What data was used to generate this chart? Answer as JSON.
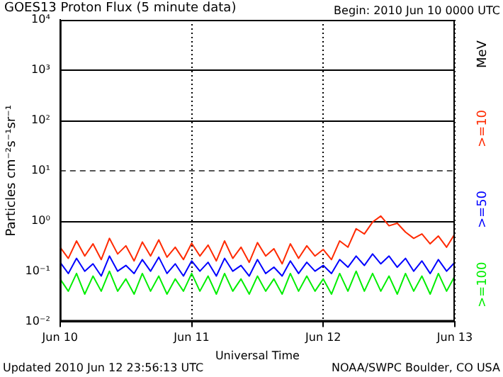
{
  "chart_data": {
    "type": "line",
    "title": "GOES13 Proton Flux (5 minute data)",
    "xlabel": "Universal Time",
    "ylabel": "Particles cm⁻²s⁻¹sr⁻¹",
    "legend_title": "MeV",
    "annotations": [
      "Begin: 2010 Jun 10 0000 UTC",
      "Updated 2010 Jun 12 23:56:13 UTC",
      "NOAA/SWPC Boulder, CO USA"
    ],
    "x": [
      "2010-06-10T00:00",
      "2010-06-10T01:30",
      "2010-06-10T03:00",
      "2010-06-10T04:30",
      "2010-06-10T06:00",
      "2010-06-10T07:30",
      "2010-06-10T09:00",
      "2010-06-10T10:30",
      "2010-06-10T12:00",
      "2010-06-10T13:30",
      "2010-06-10T15:00",
      "2010-06-10T16:30",
      "2010-06-10T18:00",
      "2010-06-10T19:30",
      "2010-06-10T21:00",
      "2010-06-10T22:30",
      "2010-06-11T00:00",
      "2010-06-11T01:30",
      "2010-06-11T03:00",
      "2010-06-11T04:30",
      "2010-06-11T06:00",
      "2010-06-11T07:30",
      "2010-06-11T09:00",
      "2010-06-11T10:30",
      "2010-06-11T12:00",
      "2010-06-11T13:30",
      "2010-06-11T15:00",
      "2010-06-11T16:30",
      "2010-06-11T18:00",
      "2010-06-11T19:30",
      "2010-06-11T21:00",
      "2010-06-11T22:30",
      "2010-06-12T00:00",
      "2010-06-12T01:30",
      "2010-06-12T03:00",
      "2010-06-12T04:30",
      "2010-06-12T06:00",
      "2010-06-12T07:30",
      "2010-06-12T09:00",
      "2010-06-12T10:30",
      "2010-06-12T12:00",
      "2010-06-12T13:30",
      "2010-06-12T15:00",
      "2010-06-12T16:30",
      "2010-06-12T18:00",
      "2010-06-12T19:30",
      "2010-06-12T21:00",
      "2010-06-12T22:30",
      "2010-06-13T00:00"
    ],
    "series": [
      {
        "name": ">=10",
        "color": "#ff2a00",
        "values": [
          0.3,
          0.18,
          0.4,
          0.2,
          0.35,
          0.17,
          0.45,
          0.22,
          0.32,
          0.16,
          0.38,
          0.2,
          0.42,
          0.19,
          0.3,
          0.17,
          0.36,
          0.2,
          0.33,
          0.16,
          0.4,
          0.18,
          0.3,
          0.15,
          0.37,
          0.2,
          0.28,
          0.14,
          0.35,
          0.18,
          0.32,
          0.2,
          0.27,
          0.17,
          0.4,
          0.3,
          0.7,
          0.55,
          0.95,
          1.25,
          0.8,
          0.9,
          0.6,
          0.45,
          0.55,
          0.35,
          0.5,
          0.3,
          0.55
        ]
      },
      {
        "name": ">=50",
        "color": "#0000ff",
        "values": [
          0.15,
          0.09,
          0.18,
          0.1,
          0.14,
          0.08,
          0.2,
          0.1,
          0.13,
          0.09,
          0.17,
          0.1,
          0.19,
          0.09,
          0.14,
          0.08,
          0.16,
          0.1,
          0.15,
          0.08,
          0.18,
          0.1,
          0.13,
          0.08,
          0.17,
          0.09,
          0.12,
          0.08,
          0.16,
          0.09,
          0.15,
          0.1,
          0.13,
          0.09,
          0.17,
          0.12,
          0.2,
          0.13,
          0.22,
          0.14,
          0.2,
          0.12,
          0.18,
          0.1,
          0.16,
          0.09,
          0.17,
          0.1,
          0.15
        ]
      },
      {
        "name": ">=100",
        "color": "#00ee00",
        "values": [
          0.07,
          0.04,
          0.09,
          0.035,
          0.08,
          0.04,
          0.1,
          0.04,
          0.07,
          0.035,
          0.09,
          0.04,
          0.08,
          0.035,
          0.07,
          0.04,
          0.09,
          0.04,
          0.08,
          0.035,
          0.09,
          0.04,
          0.07,
          0.035,
          0.08,
          0.04,
          0.07,
          0.035,
          0.09,
          0.04,
          0.08,
          0.04,
          0.07,
          0.035,
          0.09,
          0.04,
          0.1,
          0.04,
          0.09,
          0.04,
          0.08,
          0.035,
          0.09,
          0.04,
          0.08,
          0.035,
          0.09,
          0.04,
          0.08
        ]
      }
    ],
    "log": true,
    "xlim": [
      "2010-06-10",
      "2010-06-13"
    ],
    "xticks": [
      {
        "value": "2010-06-10",
        "label": "Jun 10"
      },
      {
        "value": "2010-06-11",
        "label": "Jun 11"
      },
      {
        "value": "2010-06-12",
        "label": "Jun 12"
      },
      {
        "value": "2010-06-13",
        "label": "Jun 13"
      }
    ],
    "ylim": [
      0.01,
      10000
    ],
    "yticks": [
      {
        "value": 0.01,
        "label": "10⁻²"
      },
      {
        "value": 0.1,
        "label": "10⁻¹"
      },
      {
        "value": 1,
        "label": "10⁰"
      },
      {
        "value": 10,
        "label": "10¹"
      },
      {
        "value": 100,
        "label": "10²"
      },
      {
        "value": 1000,
        "label": "10³"
      },
      {
        "value": 10000,
        "label": "10⁴"
      }
    ],
    "ref_lines": [
      {
        "axis": "y",
        "value": 1000,
        "color": "#000000",
        "line_style": "solid"
      },
      {
        "axis": "y",
        "value": 100,
        "color": "#000000",
        "line_style": "solid"
      },
      {
        "axis": "y",
        "value": 10,
        "color": "#555555",
        "line_style": "dashed"
      },
      {
        "axis": "y",
        "value": 1,
        "color": "#000000",
        "line_style": "solid"
      }
    ],
    "grid": "x",
    "legend": "right",
    "marker": "none",
    "line_style": "solid"
  }
}
